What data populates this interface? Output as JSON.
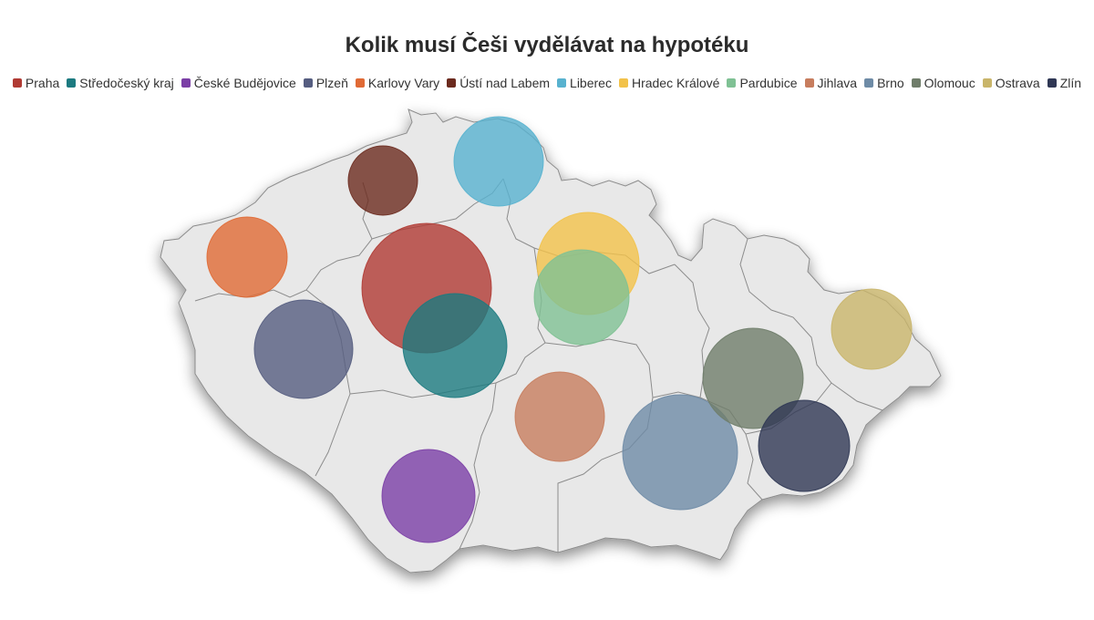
{
  "title": "Kolik musí Češi vydělávat na hypotéku",
  "colors": {
    "land": "#e8e8e8",
    "border": "#8c8c8c"
  },
  "legend": [
    {
      "label": "Praha",
      "color": "#b03a33"
    },
    {
      "label": "Středočeský kraj",
      "color": "#1c7a80"
    },
    {
      "label": "České Budějovice",
      "color": "#7b3fa6"
    },
    {
      "label": "Plzeň",
      "color": "#555d80"
    },
    {
      "label": "Karlovy Vary",
      "color": "#e06a35"
    },
    {
      "label": "Ústí nad Labem",
      "color": "#6b2a1e"
    },
    {
      "label": "Liberec",
      "color": "#58b2cf"
    },
    {
      "label": "Hradec Králové",
      "color": "#f2c24a"
    },
    {
      "label": "Pardubice",
      "color": "#7fc194"
    },
    {
      "label": "Jihlava",
      "color": "#c77d5e"
    },
    {
      "label": "Brno",
      "color": "#6e8ba6"
    },
    {
      "label": "Olomouc",
      "color": "#6f7d6a"
    },
    {
      "label": "Ostrava",
      "color": "#c9b56a"
    },
    {
      "label": "Zlín",
      "color": "#2f3754"
    }
  ]
}
